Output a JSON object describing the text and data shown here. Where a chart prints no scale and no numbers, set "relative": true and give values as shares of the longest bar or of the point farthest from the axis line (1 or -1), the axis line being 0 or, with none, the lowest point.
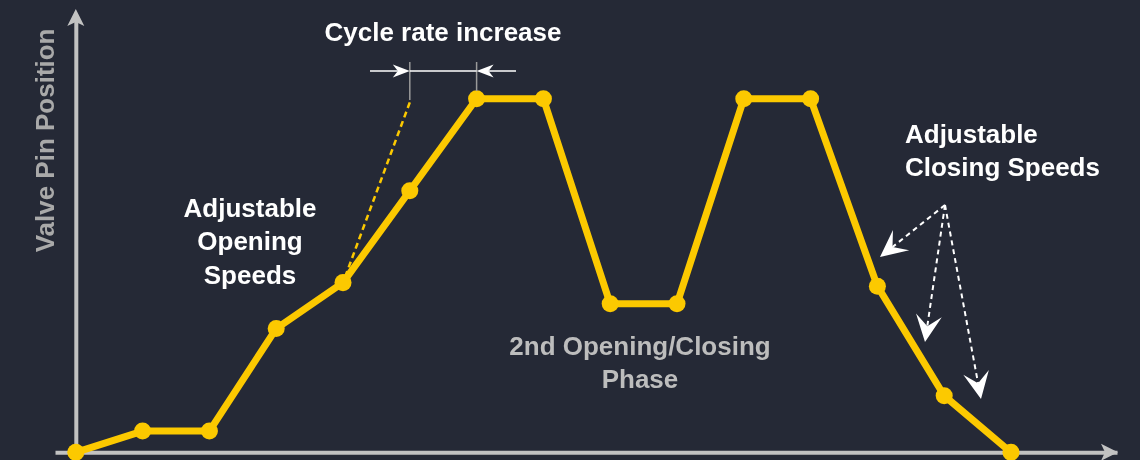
{
  "chart_data": {
    "type": "line",
    "ylabel": "Valve Pin Position",
    "annotations": [
      "Cycle rate increase",
      "Adjustable Opening Speeds",
      "2nd Opening/Closing Phase",
      "Adjustable Closing Speeds"
    ],
    "relative": true,
    "line_style": "solid",
    "marker": "circle",
    "categories": [
      null,
      null,
      null,
      null,
      null,
      null,
      null,
      null,
      null,
      null,
      null,
      null,
      null,
      null,
      null
    ],
    "series": [
      {
        "color": "#fcc900",
        "values": [
          0,
          0.06,
          0.06,
          0.35,
          0.48,
          0.74,
          1,
          1,
          0.42,
          0.42,
          1,
          1,
          0.47,
          0.16,
          0
        ]
      },
      {
        "color": "#fcc900",
        "values": [
          null,
          null,
          null,
          null,
          0.48,
          0.99,
          null,
          null,
          null,
          null,
          null,
          null,
          null,
          null,
          null
        ],
        "line_style": "dashed",
        "marker": "none"
      }
    ]
  }
}
